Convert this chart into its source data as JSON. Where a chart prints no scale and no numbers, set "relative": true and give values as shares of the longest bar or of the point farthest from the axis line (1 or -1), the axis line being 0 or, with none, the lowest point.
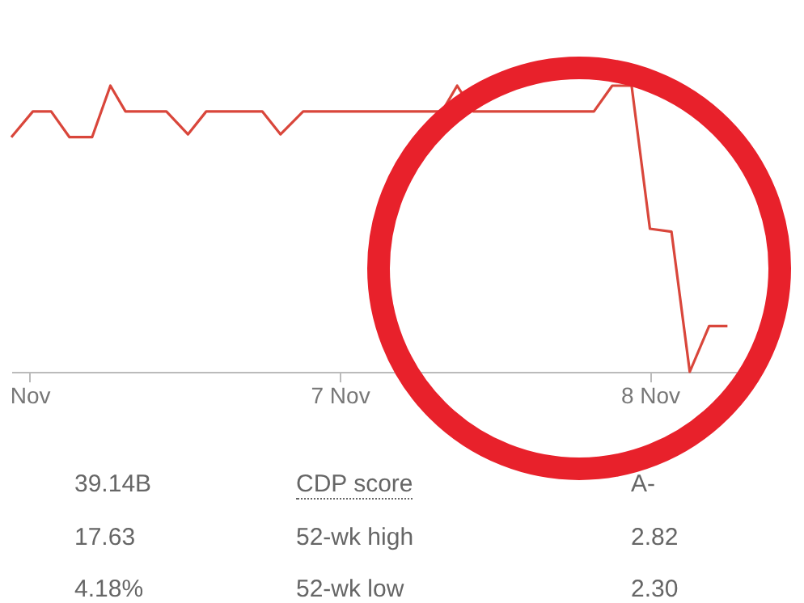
{
  "chart_data": {
    "type": "line",
    "relative": true,
    "x": [
      "--11-05T22:35",
      "--11-06T00:15",
      "--11-06T01:40",
      "--11-06T03:05",
      "--11-06T04:50",
      "--11-06T06:15",
      "--11-06T07:25",
      "--11-06T10:35",
      "--11-06T12:15",
      "--11-06T13:40",
      "--11-06T18:00",
      "--11-06T19:25",
      "--11-06T21:10",
      "--11-07T07:55",
      "--11-07T09:05",
      "--11-07T10:20",
      "--11-07T19:40",
      "--11-07T21:05",
      "--11-07T22:35",
      "--11-08T00:00",
      "--11-08T01:40",
      "--11-08T03:05",
      "--11-08T04:35",
      "--11-08T06:00"
    ],
    "series": [
      {
        "color": "#d9463b",
        "values": [
          0.82,
          0.91,
          0.91,
          0.82,
          0.82,
          1,
          0.91,
          0.91,
          0.83,
          0.91,
          0.91,
          0.83,
          0.91,
          0.91,
          1,
          0.91,
          0.91,
          1,
          1,
          0.5,
          0.49,
          0,
          0.16,
          0.16
        ]
      }
    ],
    "xlim": [
      "--11-05T22:35",
      "--11-08T07:10"
    ],
    "xticks": [
      {
        "value": "--11-06",
        "label": "Nov"
      },
      {
        "value": "--11-07",
        "label": "7 Nov"
      },
      {
        "value": "--11-08",
        "label": "8 Nov"
      }
    ],
    "line_style": "solid",
    "marker": "none",
    "annotations": [
      "39.14B",
      "CDP score",
      "A-",
      "17.63",
      "52-wk high",
      "2.82",
      "4.18%",
      "52-wk low",
      "2.30"
    ]
  }
}
